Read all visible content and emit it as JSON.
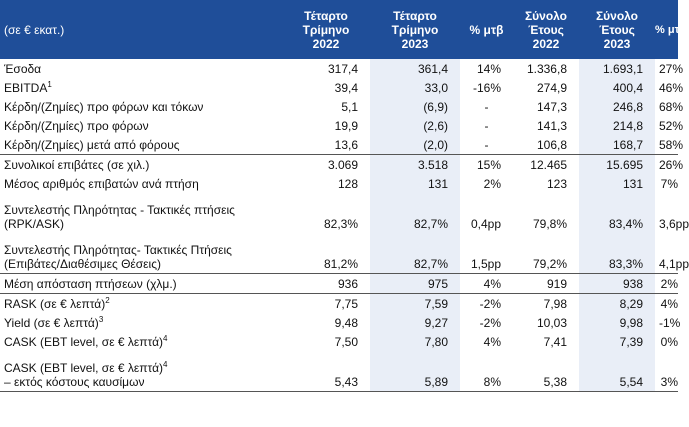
{
  "header": {
    "label": "(σε € εκατ.)",
    "col1": [
      "Τέταρτο",
      "Τρίμηνο",
      "2022"
    ],
    "col2": [
      "Τέταρτο",
      "Τρίμηνο",
      "2023"
    ],
    "col3": "% μτβ",
    "col4": [
      "Σύνολο",
      "Έτους",
      "2022"
    ],
    "col5": [
      "Σύνολο",
      "Έτους",
      "2023"
    ],
    "col6": "% μτβ"
  },
  "rows": [
    {
      "label": "Έσοδα",
      "sup": "",
      "q22": "317,4",
      "q23": "361,4",
      "qch": "14%",
      "y22": "1.336,8",
      "y23": "1.693,1",
      "ych": "27%"
    },
    {
      "label": "EBITDA",
      "sup": "1",
      "q22": "39,4",
      "q23": "33,0",
      "qch": "-16%",
      "y22": "274,9",
      "y23": "400,4",
      "ych": "46%"
    },
    {
      "label": "Κέρδη/(Ζημίες) προ φόρων και τόκων",
      "sup": "",
      "q22": "5,1",
      "q23": "(6,9)",
      "qch": "-",
      "y22": "147,3",
      "y23": "246,8",
      "ych": "68%"
    },
    {
      "label": "Κέρδη/(Ζημίες) προ φόρων",
      "sup": "",
      "q22": "19,9",
      "q23": "(2,6)",
      "qch": "-",
      "y22": "141,3",
      "y23": "214,8",
      "ych": "52%"
    },
    {
      "label": "Κέρδη/(Ζημίες) μετά από φόρους",
      "sup": "",
      "q22": "13,6",
      "q23": "(2,0)",
      "qch": "-",
      "y22": "106,8",
      "y23": "168,7",
      "ych": "58%"
    },
    {
      "label": "Συνολικοί επιβάτες (σε χιλ.)",
      "sup": "",
      "q22": "3.069",
      "q23": "3.518",
      "qch": "15%",
      "y22": "12.465",
      "y23": "15.695",
      "ych": "26%"
    },
    {
      "label": "Μέσος αριθμός επιβατών ανά πτήση",
      "sup": "",
      "q22": "128",
      "q23": "131",
      "qch": "2%",
      "y22": "123",
      "y23": "131",
      "ych": "7%"
    },
    {
      "label": "Συντελεστής Πληρότητας - Τακτικές πτήσεις",
      "label2": "(RPK/ASK)",
      "sup": "",
      "q22": "82,3%",
      "q23": "82,7%",
      "qch": "0,4pp",
      "y22": "79,8%",
      "y23": "83,4%",
      "ych": "3,6pp"
    },
    {
      "label": "Συντελεστής Πληρότητας- Τακτικές Πτήσεις",
      "label2": "(Επιβάτες/Διαθέσιμες Θέσεις)",
      "sup": "",
      "q22": "81,2%",
      "q23": "82,7%",
      "qch": "1,5pp",
      "y22": "79,2%",
      "y23": "83,3%",
      "ych": "4,1pp"
    },
    {
      "label": "Μέση απόσταση πτήσεων (χλμ.)",
      "sup": "",
      "q22": "936",
      "q23": "975",
      "qch": "4%",
      "y22": "919",
      "y23": "938",
      "ych": "2%"
    },
    {
      "label": "RASK (σε € λεπτά)",
      "sup": "2",
      "q22": "7,75",
      "q23": "7,59",
      "qch": "-2%",
      "y22": "7,98",
      "y23": "8,29",
      "ych": "4%"
    },
    {
      "label": "Yield (σε € λεπτά)",
      "sup": "3",
      "q22": "9,48",
      "q23": "9,27",
      "qch": "-2%",
      "y22": "10,03",
      "y23": "9,98",
      "ych": "-1%"
    },
    {
      "label": "CASK (EBT level, σε € λεπτά)",
      "sup": "4",
      "q22": "7,50",
      "q23": "7,80",
      "qch": "4%",
      "y22": "7,41",
      "y23": "7,39",
      "ych": "0%"
    },
    {
      "label": "CASK (EBT level, σε € λεπτά)",
      "label2": "– εκτός κόστους καυσίμων",
      "sup": "4",
      "q22": "5,43",
      "q23": "5,89",
      "qch": "8%",
      "y22": "5,38",
      "y23": "5,54",
      "ych": "3%"
    }
  ]
}
